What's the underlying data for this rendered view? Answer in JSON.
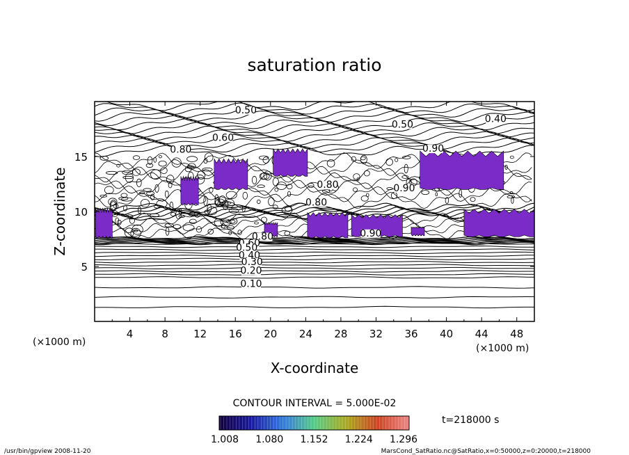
{
  "chart_data": {
    "type": "heatmap",
    "title": "saturation ratio",
    "xlabel": "X-coordinate",
    "ylabel": "Z-coordinate",
    "x_unit": "(×1000 m)",
    "z_unit": "(×1000 m)",
    "xlim": [
      0,
      50
    ],
    "zlim": [
      0,
      20
    ],
    "x_ticks": [
      4,
      8,
      12,
      16,
      20,
      24,
      28,
      32,
      36,
      40,
      44,
      48
    ],
    "z_ticks": [
      5,
      10,
      15
    ],
    "contour_interval_label": "CONTOUR INTERVAL = 5.000E-02",
    "contour_interval": 0.05,
    "contour_labels": [
      {
        "text": "0.50",
        "x": 17.2,
        "z": 19.0
      },
      {
        "text": "0.50",
        "x": 35.0,
        "z": 17.7
      },
      {
        "text": "0.40",
        "x": 45.6,
        "z": 18.2
      },
      {
        "text": "0.60",
        "x": 14.6,
        "z": 16.5
      },
      {
        "text": "0.80",
        "x": 9.8,
        "z": 15.4
      },
      {
        "text": "0.90",
        "x": 38.5,
        "z": 15.5
      },
      {
        "text": "0.80",
        "x": 26.5,
        "z": 12.2
      },
      {
        "text": "0.90",
        "x": 35.2,
        "z": 11.9
      },
      {
        "text": "0.80",
        "x": 25.2,
        "z": 10.6
      },
      {
        "text": "0.90",
        "x": 31.4,
        "z": 7.8
      },
      {
        "text": "0.80",
        "x": 19.1,
        "z": 7.5
      },
      {
        "text": "0.60",
        "x": 17.6,
        "z": 6.9
      },
      {
        "text": "0.50",
        "x": 17.3,
        "z": 6.5
      },
      {
        "text": "0.40",
        "x": 17.6,
        "z": 5.8
      },
      {
        "text": "0.30",
        "x": 17.9,
        "z": 5.2
      },
      {
        "text": "0.20",
        "x": 17.8,
        "z": 4.4
      },
      {
        "text": "0.10",
        "x": 17.8,
        "z": 3.2
      }
    ],
    "colorbar": {
      "tick_labels": [
        "1.008",
        "1.080",
        "1.152",
        "1.224",
        "1.296"
      ],
      "min": 1.008,
      "max": 1.296,
      "colors": [
        "#11003a",
        "#1a1aa0",
        "#3377e0",
        "#55cc88",
        "#aaaa22",
        "#cc4422",
        "#ee8888"
      ]
    },
    "supersaturated_fill_color": "#7b2cc8",
    "supersaturated_regions": [
      {
        "x": [
          20.3,
          24.2
        ],
        "z": [
          13.2,
          15.7
        ]
      },
      {
        "x": [
          13.6,
          17.4
        ],
        "z": [
          12.0,
          14.8
        ]
      },
      {
        "x": [
          9.8,
          11.8
        ],
        "z": [
          10.6,
          13.2
        ]
      },
      {
        "x": [
          0.1,
          2.0
        ],
        "z": [
          7.6,
          10.3
        ]
      },
      {
        "x": [
          24.2,
          28.8
        ],
        "z": [
          7.6,
          9.9
        ]
      },
      {
        "x": [
          29.2,
          35.0
        ],
        "z": [
          7.7,
          9.7
        ]
      },
      {
        "x": [
          19.3,
          20.8
        ],
        "z": [
          7.7,
          9.0
        ]
      },
      {
        "x": [
          37.0,
          46.5
        ],
        "z": [
          12.0,
          15.5
        ]
      },
      {
        "x": [
          42.0,
          50.0
        ],
        "z": [
          7.7,
          10.2
        ]
      },
      {
        "x": [
          36.0,
          37.5
        ],
        "z": [
          7.8,
          8.6
        ]
      }
    ]
  },
  "footer": {
    "time_label": "t=218000 s",
    "program_date": "/usr/bin/gpview   2008-11-20",
    "source": "MarsCond_SatRatio.nc@SatRatio,x=0:50000,z=0:20000,t=218000"
  }
}
